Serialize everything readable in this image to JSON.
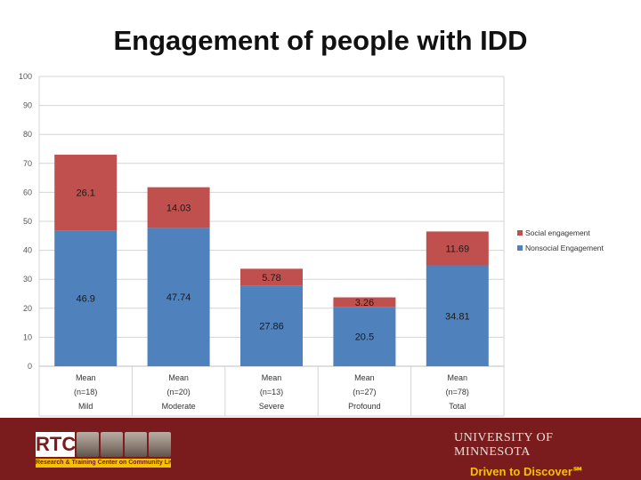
{
  "chart_data": {
    "type": "bar",
    "stacked": true,
    "title": "Engagement of people with IDD",
    "categories": [
      [
        "Mean",
        "(n=18)",
        "Mild"
      ],
      [
        "Mean",
        "(n=20)",
        "Moderate"
      ],
      [
        "Mean",
        "(n=13)",
        "Severe"
      ],
      [
        "Mean",
        "(n=27)",
        "Profound"
      ],
      [
        "Mean",
        "(n=78)",
        "Total"
      ]
    ],
    "series": [
      {
        "name": "Nonsocial Engagement",
        "color": "#4f81bd",
        "values": [
          46.9,
          47.74,
          27.86,
          20.5,
          34.81
        ],
        "labels": [
          "46.9",
          "47.74",
          "27.86",
          "20.5",
          "34.81"
        ]
      },
      {
        "name": "Social engagement",
        "color": "#c0504d",
        "values": [
          26.1,
          14.03,
          5.78,
          3.26,
          11.69
        ],
        "labels": [
          "26.1",
          "14.03",
          "5.78",
          "3.26",
          "11.69"
        ]
      }
    ],
    "legend_order": [
      "Social engagement",
      "Nonsocial Engagement"
    ],
    "ylim": [
      0,
      100
    ],
    "yticks": [
      0,
      10,
      20,
      30,
      40,
      50,
      60,
      70,
      80,
      90,
      100
    ],
    "grid": true,
    "legend": "right"
  },
  "footer": {
    "rtc_mark": "RTC",
    "rtc_strip": "Research & Training Center on Community Living",
    "university": "UNIVERSITY OF MINNESOTA",
    "tagline": "Driven to Discover℠"
  }
}
